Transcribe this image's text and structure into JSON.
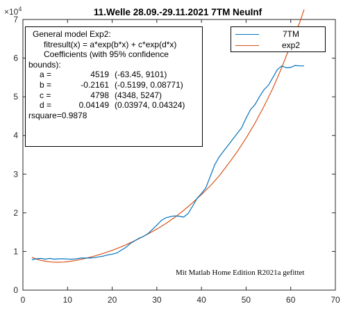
{
  "chart_data": {
    "type": "line",
    "title": "11.Welle 28.09.-29.11.2021 7TM NeuInf",
    "xlabel": "",
    "ylabel": "",
    "xlim": [
      0,
      70
    ],
    "ylim": [
      0,
      70000
    ],
    "x_ticks": [
      "0",
      "10",
      "20",
      "30",
      "40",
      "50",
      "60",
      "70"
    ],
    "y_ticks": [
      "0",
      "1",
      "2",
      "3",
      "4",
      "5",
      "6",
      "7"
    ],
    "y_exponent_label": "×10",
    "y_exponent_power": "4",
    "grid": false,
    "legend_position": "top-right",
    "series": [
      {
        "name": "7TM",
        "color": "#0072BD",
        "x": [
          2,
          3,
          4,
          5,
          6,
          7,
          8,
          9,
          10,
          11,
          12,
          13,
          14,
          15,
          16,
          17,
          18,
          19,
          20,
          21,
          22,
          23,
          24,
          25,
          26,
          27,
          28,
          29,
          30,
          31,
          32,
          33,
          34,
          35,
          36,
          37,
          38,
          39,
          40,
          41,
          42,
          43,
          44,
          45,
          46,
          47,
          48,
          49,
          50,
          51,
          52,
          53,
          54,
          55,
          56,
          57,
          58,
          59,
          60,
          61,
          62,
          63
        ],
        "y": [
          7900,
          8100,
          8200,
          8000,
          8200,
          8000,
          8100,
          8100,
          8050,
          8000,
          8100,
          8300,
          8300,
          8300,
          8400,
          8600,
          8800,
          9100,
          9300,
          9600,
          10300,
          11000,
          12000,
          12700,
          13400,
          13900,
          14600,
          15700,
          16800,
          18000,
          18700,
          19000,
          19200,
          19100,
          18900,
          19800,
          21700,
          23700,
          25000,
          26500,
          29500,
          32500,
          34500,
          36000,
          37500,
          39000,
          40500,
          42000,
          44500,
          46700,
          48000,
          50000,
          51800,
          53000,
          55000,
          57000,
          58000,
          57500,
          57600,
          58100,
          58000,
          58000
        ]
      },
      {
        "name": "exp2",
        "color": "#D95319",
        "x": [
          2,
          3,
          4,
          5,
          6,
          7,
          8,
          9,
          10,
          12,
          14,
          16,
          18,
          20,
          22,
          24,
          26,
          28,
          30,
          32,
          34,
          36,
          38,
          40,
          42,
          44,
          46,
          48,
          50,
          52,
          54,
          56,
          58,
          60,
          62,
          63
        ],
        "y": [
          8500,
          8050,
          7700,
          7480,
          7330,
          7240,
          7220,
          7260,
          7360,
          7710,
          8200,
          8800,
          9500,
          10300,
          11200,
          12200,
          13300,
          14500,
          15800,
          17200,
          18800,
          20600,
          22600,
          24700,
          27000,
          29600,
          32600,
          35800,
          39300,
          43200,
          47500,
          52200,
          57600,
          63500,
          69200,
          72600
        ]
      }
    ],
    "fit_box": {
      "title": "General model Exp2:",
      "formula": "fitresult(x) = a*exp(b*x) + c*exp(d*x)",
      "coef_header_1": "Coefficients (with 95% confidence",
      "coef_header_2": "bounds):",
      "params": [
        {
          "name": "a =",
          "value": "4519",
          "ci": "(-63.45, 9101)"
        },
        {
          "name": "b =",
          "value": "-0.2161",
          "ci": "(-0.5199, 0.08771)"
        },
        {
          "name": "c =",
          "value": "4798",
          "ci": "(4348, 5247)"
        },
        {
          "name": "d =",
          "value": "0.04149",
          "ci": "(0.03974, 0.04324)"
        }
      ],
      "rsquare": "rsquare=0.9878"
    },
    "annotation": "Mit Matlab Home Edition R2021a gefittet"
  }
}
